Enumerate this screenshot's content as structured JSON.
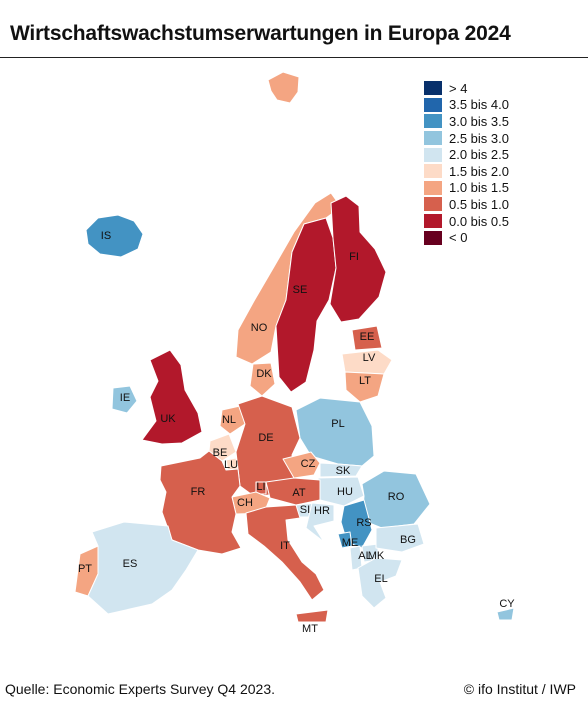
{
  "title": "Wirtschaftswachstumserwartungen in Europa 2024",
  "legend": [
    {
      "label": "> 4",
      "color": "#08306b"
    },
    {
      "label": "3.5 bis 4.0",
      "color": "#2166ac"
    },
    {
      "label": "3.0 bis 3.5",
      "color": "#4393c3"
    },
    {
      "label": "2.5 bis 3.0",
      "color": "#92c5de"
    },
    {
      "label": "2.0 bis 2.5",
      "color": "#d1e5f0"
    },
    {
      "label": "1.5 bis 2.0",
      "color": "#fddbc7"
    },
    {
      "label": "1.0 bis 1.5",
      "color": "#f4a582"
    },
    {
      "label": "0.5 bis 1.0",
      "color": "#d6604d"
    },
    {
      "label": "0.0 bis 0.5",
      "color": "#b2182b"
    },
    {
      "label": "< 0",
      "color": "#67001f"
    }
  ],
  "countries": [
    {
      "code": "IS",
      "cls": "3.0 bis 3.5"
    },
    {
      "code": "NO",
      "cls": "1.0 bis 1.5"
    },
    {
      "code": "SE",
      "cls": "0.0 bis 0.5"
    },
    {
      "code": "FI",
      "cls": "0.0 bis 0.5"
    },
    {
      "code": "EE",
      "cls": "0.5 bis 1.0"
    },
    {
      "code": "LV",
      "cls": "1.5 bis 2.0"
    },
    {
      "code": "LT",
      "cls": "1.0 bis 1.5"
    },
    {
      "code": "DK",
      "cls": "1.0 bis 1.5"
    },
    {
      "code": "IE",
      "cls": "2.5 bis 3.0"
    },
    {
      "code": "UK",
      "cls": "0.0 bis 0.5"
    },
    {
      "code": "NL",
      "cls": "1.0 bis 1.5"
    },
    {
      "code": "BE",
      "cls": "1.5 bis 2.0"
    },
    {
      "code": "LU",
      "cls": "1.5 bis 2.0"
    },
    {
      "code": "DE",
      "cls": "0.5 bis 1.0"
    },
    {
      "code": "PL",
      "cls": "2.5 bis 3.0"
    },
    {
      "code": "CZ",
      "cls": "1.0 bis 1.5"
    },
    {
      "code": "SK",
      "cls": "2.0 bis 2.5"
    },
    {
      "code": "HU",
      "cls": "2.0 bis 2.5"
    },
    {
      "code": "AT",
      "cls": "0.5 bis 1.0"
    },
    {
      "code": "LI",
      "cls": "0.5 bis 1.0"
    },
    {
      "code": "CH",
      "cls": "1.0 bis 1.5"
    },
    {
      "code": "FR",
      "cls": "0.5 bis 1.0"
    },
    {
      "code": "SI",
      "cls": "2.0 bis 2.5"
    },
    {
      "code": "HR",
      "cls": "2.0 bis 2.5"
    },
    {
      "code": "RO",
      "cls": "2.5 bis 3.0"
    },
    {
      "code": "RS",
      "cls": "3.0 bis 3.5"
    },
    {
      "code": "ME",
      "cls": "3.0 bis 3.5"
    },
    {
      "code": "AL",
      "cls": "2.0 bis 2.5"
    },
    {
      "code": "MK",
      "cls": "2.0 bis 2.5"
    },
    {
      "code": "BG",
      "cls": "2.0 bis 2.5"
    },
    {
      "code": "EL",
      "cls": "2.0 bis 2.5"
    },
    {
      "code": "IT",
      "cls": "0.5 bis 1.0"
    },
    {
      "code": "MT",
      "cls": "0.5 bis 1.0"
    },
    {
      "code": "PT",
      "cls": "1.0 bis 1.5"
    },
    {
      "code": "ES",
      "cls": "2.0 bis 2.5"
    },
    {
      "code": "CY",
      "cls": "2.5 bis 3.0"
    },
    {
      "code": "SJ",
      "cls": "1.0 bis 1.5"
    }
  ],
  "footer": {
    "source": "Quelle: Economic Experts Survey Q4 2023.",
    "credit": "© ifo Institut / IWP"
  }
}
